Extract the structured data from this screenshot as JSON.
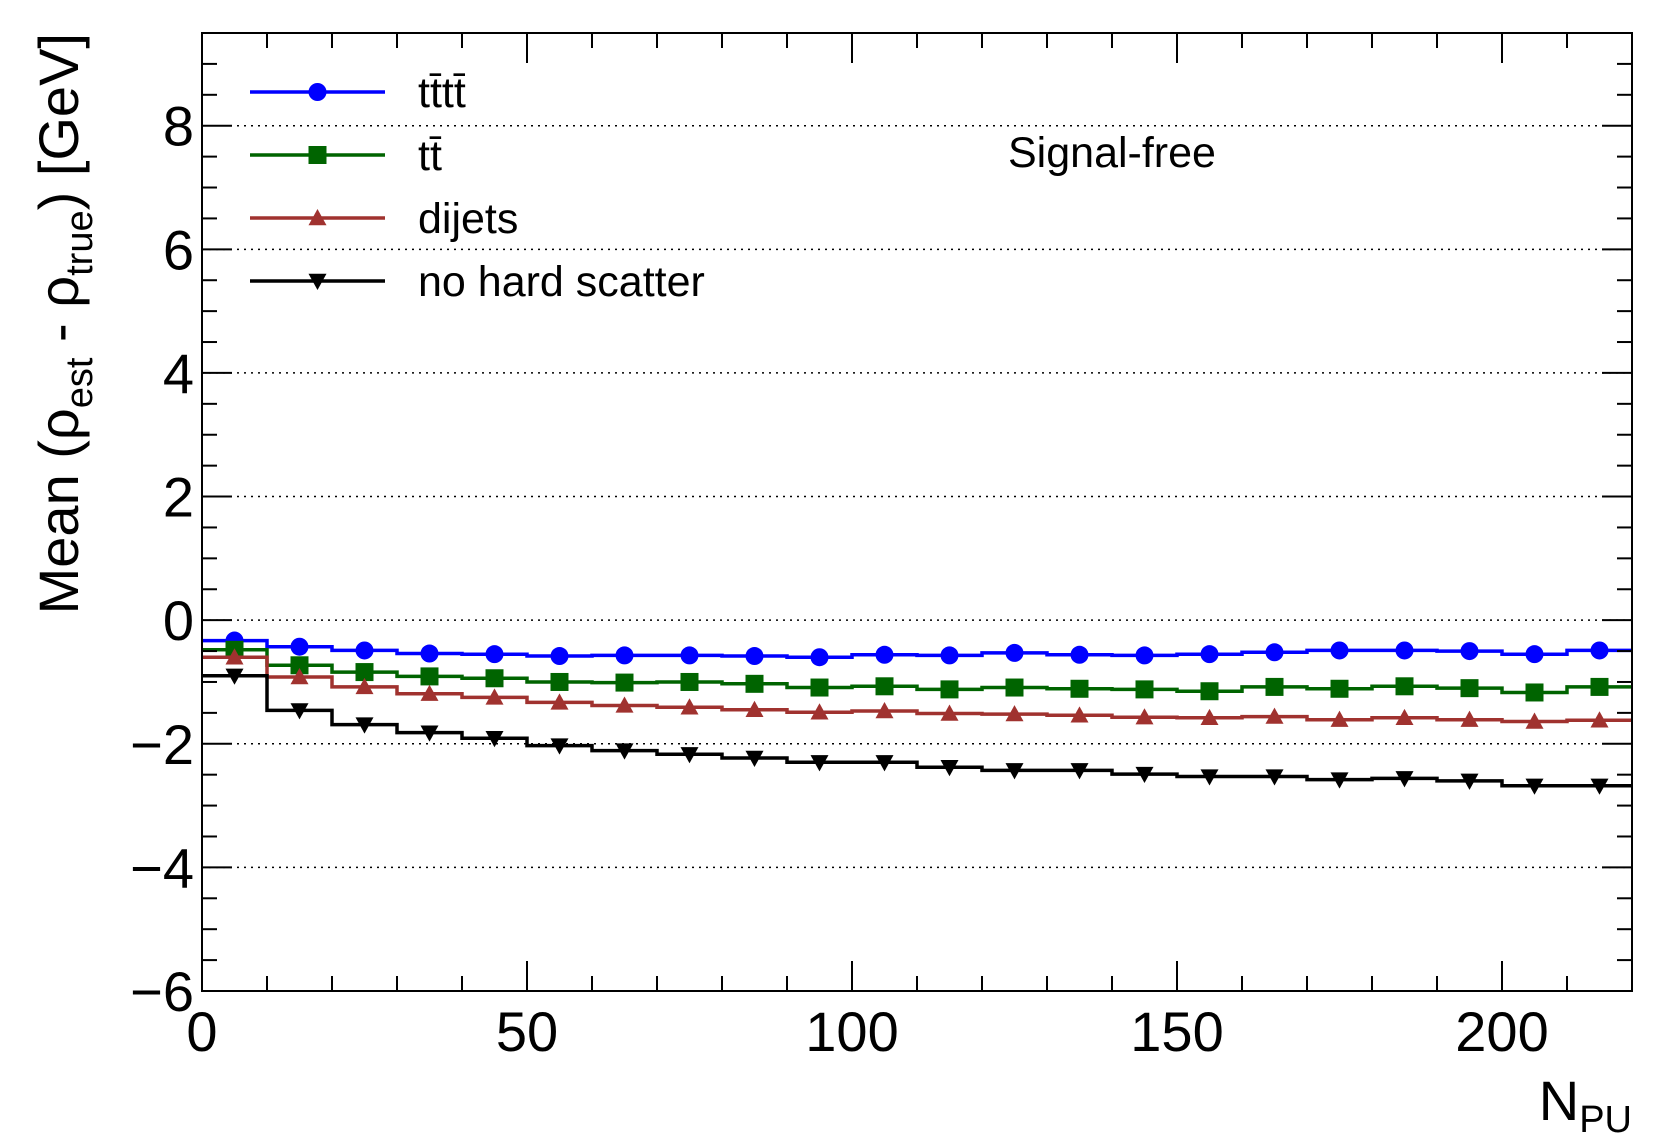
{
  "chart_data": {
    "type": "line",
    "title": "",
    "annotation": "Signal-free",
    "xlabel": "N",
    "xlabel_sub": "PU",
    "ylabel_parts": {
      "prefix": "Mean (ρ",
      "sub1": "est",
      "middle": " - ρ",
      "sub2": "true",
      "suffix": ") [GeV]"
    },
    "xlim": [
      0,
      220
    ],
    "ylim": [
      -6,
      9.5
    ],
    "x_ticks": [
      0,
      50,
      100,
      150,
      200
    ],
    "x_tick_labels": [
      "0",
      "50",
      "100",
      "150",
      "200"
    ],
    "y_ticks": [
      -6,
      -4,
      -2,
      0,
      2,
      4,
      6,
      8
    ],
    "y_tick_labels": [
      "−6",
      "−4",
      "−2",
      "0",
      "2",
      "4",
      "6",
      "8"
    ],
    "grid_y": [
      -4,
      -2,
      0,
      2,
      4,
      6,
      8
    ],
    "legend_position": "top-left",
    "x": [
      5,
      15,
      25,
      35,
      45,
      55,
      65,
      75,
      85,
      95,
      105,
      115,
      125,
      135,
      145,
      155,
      165,
      175,
      185,
      195,
      205,
      215
    ],
    "series": [
      {
        "name": "tt̄tt̄",
        "color": "#0000ff",
        "marker": "circle",
        "values": [
          -0.33,
          -0.43,
          -0.49,
          -0.54,
          -0.55,
          -0.58,
          -0.57,
          -0.57,
          -0.58,
          -0.6,
          -0.56,
          -0.57,
          -0.53,
          -0.56,
          -0.57,
          -0.55,
          -0.52,
          -0.49,
          -0.49,
          -0.5,
          -0.55,
          -0.49
        ]
      },
      {
        "name": "tt̄",
        "color": "#006400",
        "marker": "square",
        "values": [
          -0.48,
          -0.73,
          -0.84,
          -0.91,
          -0.94,
          -1.0,
          -1.01,
          -1.0,
          -1.03,
          -1.09,
          -1.07,
          -1.12,
          -1.09,
          -1.11,
          -1.12,
          -1.15,
          -1.08,
          -1.11,
          -1.07,
          -1.1,
          -1.17,
          -1.08
        ]
      },
      {
        "name": "dijets",
        "color": "#a0322f",
        "marker": "triangle-up",
        "values": [
          -0.6,
          -0.92,
          -1.08,
          -1.19,
          -1.25,
          -1.33,
          -1.38,
          -1.41,
          -1.45,
          -1.49,
          -1.47,
          -1.51,
          -1.52,
          -1.54,
          -1.57,
          -1.58,
          -1.56,
          -1.61,
          -1.58,
          -1.61,
          -1.64,
          -1.62
        ]
      },
      {
        "name": "no hard scatter",
        "color": "#000000",
        "marker": "triangle-down",
        "values": [
          -0.9,
          -1.46,
          -1.69,
          -1.82,
          -1.91,
          -2.03,
          -2.11,
          -2.17,
          -2.23,
          -2.3,
          -2.3,
          -2.38,
          -2.43,
          -2.43,
          -2.49,
          -2.53,
          -2.53,
          -2.58,
          -2.56,
          -2.6,
          -2.68,
          -2.68
        ]
      }
    ]
  }
}
